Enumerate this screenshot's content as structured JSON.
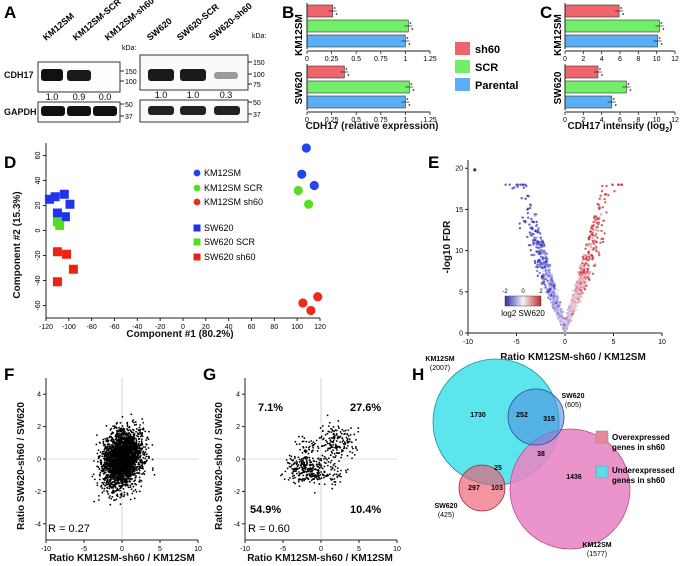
{
  "panels": {
    "A": {
      "letter": "A",
      "lanes_left": [
        "KM12SM",
        "KM12SM-SCR",
        "KM12SM-sh60"
      ],
      "lanes_right": [
        "SW620",
        "SW620-SCR",
        "SW620-sh60"
      ],
      "kda_label": "kDa:",
      "rows": [
        {
          "label": "CDH17",
          "markers_left": [
            "150",
            "100"
          ],
          "markers_right": [
            "150",
            "100",
            "75"
          ]
        },
        {
          "label": "GAPDH",
          "markers_left": [
            "50",
            "37"
          ],
          "markers_right": [
            "50",
            "37"
          ]
        }
      ],
      "quant_left": [
        "1.0",
        "0.9",
        "0.0"
      ],
      "quant_right": [
        "1.0",
        "1.0",
        "0.3"
      ]
    },
    "B": {
      "letter": "B"
    },
    "C": {
      "letter": "C"
    },
    "D": {
      "letter": "D",
      "legend": [
        "KM12SM",
        "KM12SM SCR",
        "KM12SM sh60",
        "SW620",
        "SW620 SCR",
        "SW620 sh60"
      ]
    },
    "E": {
      "letter": "E",
      "colorbar_ticks": [
        "-2",
        "0",
        "2"
      ],
      "colorbar_label": "log2  SW620"
    },
    "F": {
      "letter": "F",
      "r_label": "R = 0.27"
    },
    "G": {
      "letter": "G",
      "r_label": "R = 0.60",
      "quadrants": {
        "top_left": "7.1%",
        "top_right": "27.6%",
        "bottom_left": "54.9%",
        "bottom_right": "10.4%"
      }
    },
    "H": {
      "letter": "H",
      "sets": [
        {
          "name": "KM12SM",
          "count": "(2007)"
        },
        {
          "name": "SW620",
          "count": "(605)"
        },
        {
          "name": "SW620",
          "count": "(425)"
        },
        {
          "name": "KM12SM",
          "count": "(1577)"
        }
      ],
      "regions": {
        "km_up_only": "1730",
        "km_sw_up": "252",
        "sw_up_only": "315",
        "up_down_a": "25",
        "up_down_b": "38",
        "sw_down_only": "297",
        "sw_km_down": "103",
        "km_down_only": "1436"
      },
      "legend": [
        {
          "line1": "Overexpressed",
          "line2": "genes in sh60",
          "color": "#e38aa0"
        },
        {
          "line1": "Underexpressed",
          "line2": "genes in sh60",
          "color": "#5fd8e8"
        }
      ]
    }
  },
  "chart_data": [
    {
      "panel": "B",
      "type": "bar",
      "orientation": "horizontal",
      "groups": [
        "KM12SM",
        "SW620"
      ],
      "series": [
        {
          "name": "sh60",
          "color": "#f2646b",
          "values": [
            0.26,
            0.38
          ]
        },
        {
          "name": "SCR",
          "color": "#74ee6a",
          "values": [
            1.03,
            1.04
          ]
        },
        {
          "name": "Parental",
          "color": "#5aaef5",
          "values": [
            1.0,
            1.0
          ]
        }
      ],
      "xlabel": "CDH17 (relative expression)",
      "xticks": [
        "0",
        "0.25",
        "0.5",
        "0.75",
        "1",
        "1.25"
      ],
      "xlim": [
        0,
        1.25
      ]
    },
    {
      "panel": "C",
      "type": "bar",
      "orientation": "horizontal",
      "groups": [
        "KM12SM",
        "SW620"
      ],
      "series": [
        {
          "name": "sh60",
          "color": "#f2646b",
          "values": [
            5.9,
            3.6
          ]
        },
        {
          "name": "SCR",
          "color": "#74ee6a",
          "values": [
            10.3,
            6.7
          ]
        },
        {
          "name": "Parental",
          "color": "#5aaef5",
          "values": [
            10.1,
            5.1
          ]
        }
      ],
      "xlabel": "CDH17 intensity (log",
      "xlabel_sub": "2",
      "xlabel_end": ")",
      "xticks": [
        "0",
        "2",
        "4",
        "6",
        "8",
        "10",
        "12"
      ],
      "xlim": [
        0,
        12
      ]
    },
    {
      "panel": "D",
      "type": "scatter",
      "xlabel": "Component #1 (80.2%)",
      "ylabel": "Component #2 (15.3%)",
      "xticks": [
        "-120",
        "-100",
        "-80",
        "-60",
        "-40",
        "-20",
        "0",
        "20",
        "40",
        "60",
        "80",
        "100",
        "120"
      ],
      "yticks": [
        "60",
        "40",
        "20",
        "0",
        "-20",
        "-40",
        "-60"
      ],
      "xlim": [
        -120,
        120
      ],
      "ylim": [
        -70,
        70
      ],
      "series": [
        {
          "name": "KM12SM",
          "marker": "circle",
          "color": "#2244ee",
          "points": [
            [
              108,
              66
            ],
            [
              104,
              45
            ],
            [
              115,
              36
            ]
          ]
        },
        {
          "name": "KM12SM SCR",
          "marker": "circle",
          "color": "#55dd22",
          "points": [
            [
              101,
              32
            ],
            [
              110,
              21
            ]
          ]
        },
        {
          "name": "KM12SM sh60",
          "marker": "circle",
          "color": "#ee2a1a",
          "points": [
            [
              105,
              -58
            ],
            [
              118,
              -53
            ],
            [
              112,
              -64
            ]
          ]
        },
        {
          "name": "SW620",
          "marker": "square",
          "color": "#2233ee",
          "points": [
            [
              -117,
              25
            ],
            [
              -112,
              27
            ],
            [
              -104,
              29
            ],
            [
              -99,
              21
            ],
            [
              -110,
              14
            ],
            [
              -103,
              11
            ]
          ]
        },
        {
          "name": "SW620 SCR",
          "marker": "square",
          "color": "#55dd22",
          "points": [
            [
              -110,
              7
            ],
            [
              -108,
              4
            ]
          ]
        },
        {
          "name": "SW620 sh60",
          "marker": "square",
          "color": "#ee2211",
          "points": [
            [
              -110,
              -17
            ],
            [
              -102,
              -19
            ],
            [
              -96,
              -31
            ],
            [
              -110,
              -41
            ]
          ]
        }
      ]
    },
    {
      "panel": "E",
      "type": "scatter",
      "description": "volcano",
      "xlabel": "Ratio KM12SM-sh60 / KM12SM",
      "ylabel": "-log10 FDR",
      "xticks": [
        "-10",
        "-5",
        "0",
        "5",
        "10"
      ],
      "yticks": [
        "0",
        "5",
        "10",
        "15",
        "20"
      ],
      "xlim": [
        -10,
        10
      ],
      "ylim": [
        0,
        21
      ]
    },
    {
      "panel": "F",
      "type": "scatter",
      "xlabel": "Ratio KM12SM-sh60 / KM12SM",
      "ylabel": "Ratio SW620-sh60 / SW620",
      "xticks": [
        "-10",
        "-5",
        "0",
        "5",
        "10"
      ],
      "yticks": [
        "4",
        "2",
        "0",
        "-2",
        "-4"
      ],
      "xlim": [
        -10,
        10
      ],
      "ylim": [
        -5,
        5
      ],
      "r": 0.27
    },
    {
      "panel": "G",
      "type": "scatter",
      "xlabel": "Ratio KM12SM-sh60 / KM12SM",
      "ylabel": "Ratio SW620-sh60 / SW620",
      "xticks": [
        "-10",
        "-5",
        "0",
        "5",
        "10"
      ],
      "yticks": [
        "4",
        "2",
        "0",
        "-2",
        "-4"
      ],
      "xlim": [
        -10,
        10
      ],
      "ylim": [
        -5,
        5
      ],
      "r": 0.6
    }
  ]
}
